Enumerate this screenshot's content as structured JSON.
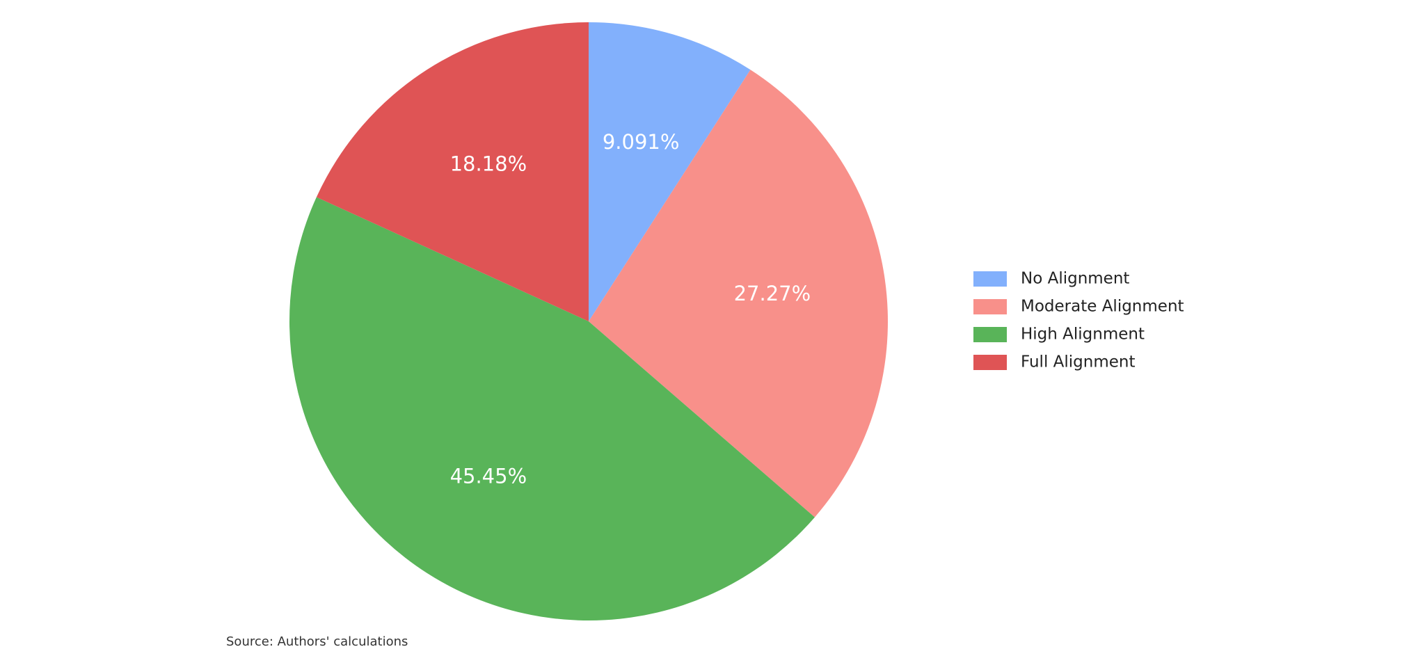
{
  "chart_data": {
    "type": "pie",
    "categories": [
      "No Alignment",
      "Moderate Alignment",
      "High Alignment",
      "Full Alignment"
    ],
    "values": [
      9.091,
      27.27,
      45.45,
      18.18
    ],
    "value_labels": [
      "9.091%",
      "27.27%",
      "45.45%",
      "18.18%"
    ],
    "colors": [
      "#82b0fc",
      "#f8908a",
      "#59b459",
      "#df5455"
    ],
    "start_angle_deg": 0,
    "direction": "clockwise",
    "legend_position": "right",
    "legend_entries": [
      "No Alignment",
      "Moderate Alignment",
      "High Alignment",
      "Full Alignment"
    ]
  },
  "source_note": "Source: Authors' calculations"
}
